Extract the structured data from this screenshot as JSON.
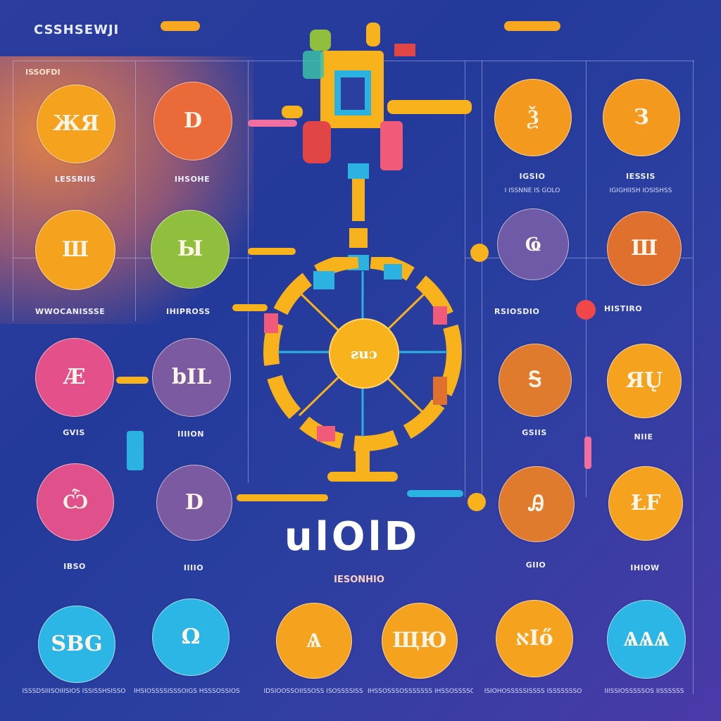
{
  "header": {
    "brand": "CSSHSEWJI",
    "accent_color": "#f7a820"
  },
  "corner_label": "ISSOFDI",
  "side_labels": {
    "left_mid": "WWOCANISSSE",
    "left_mid_2": "IHIPROSS",
    "right_mid": "RSIOSDIO",
    "right_mid_2": "HISTIRO"
  },
  "circles": [
    {
      "glyph": "ЖЯ",
      "label": "LESSRIIS",
      "color": "#f5a31f"
    },
    {
      "glyph": "D",
      "label": "IHSOHE",
      "color": "#ea6a3a"
    },
    {
      "glyph": "Ѯ",
      "label": "IGSIO",
      "sublabel": "I ISSNNE IS GOLO",
      "color": "#f39a1e"
    },
    {
      "glyph": "З",
      "label": "IESSIS",
      "sublabel": "IGIGHIISH IOSISHSS",
      "color": "#f3991d"
    },
    {
      "glyph": "Ш",
      "label": "",
      "color": "#f5a31f"
    },
    {
      "glyph": "Ы",
      "label": "",
      "color": "#8fbf3c"
    },
    {
      "glyph": "Ҩ",
      "label": "",
      "color": "#6e5aa6"
    },
    {
      "glyph": "Ш",
      "label": "",
      "color": "#e0702e"
    },
    {
      "glyph": "Ӕ",
      "label": "GVIS",
      "color": "#e4508a"
    },
    {
      "glyph": "bIL",
      "label": "IIIION",
      "color": "#7c5aa2"
    },
    {
      "glyph": "Ꭶ",
      "label": "GSIIS",
      "color": "#e07a2c"
    },
    {
      "glyph": "ЯŲ",
      "label": "NIIE",
      "color": "#f5a31f"
    },
    {
      "glyph": "Ѽ",
      "label": "IBSO",
      "color": "#e0508a"
    },
    {
      "glyph": "D",
      "label": "IIIIO",
      "color": "#7c5aa2"
    },
    {
      "glyph": "Ꭿ",
      "label": "GIIO",
      "color": "#e07a2c"
    },
    {
      "glyph": "ŁF",
      "label": "IHIOW",
      "color": "#f5a31f"
    },
    {
      "glyph": "SBG",
      "label": "",
      "color": "#2cb6e6"
    },
    {
      "glyph": "Ω",
      "label": "",
      "color": "#2cb6e6"
    },
    {
      "glyph": "Ѧ",
      "label": "",
      "color": "#f5a31f"
    },
    {
      "glyph": "ЩЮ",
      "label": "",
      "color": "#f5a31f"
    },
    {
      "glyph": "אІő",
      "label": "",
      "color": "#f5a31f"
    },
    {
      "glyph": "ѦѦѦ",
      "label": "",
      "color": "#2cb6e6"
    }
  ],
  "wheel": {
    "hub_text": "ƨuɔ",
    "hub_color": "#f7b21c"
  },
  "center": {
    "title": "ulOlD",
    "subtitle": "IESONHIO"
  },
  "bottom_captions": [
    "ISSSDSIIISOIIISIOS ISSISSHSISSO",
    "IHSIOSSSSISSSOIGS HSSSOSSIOS",
    "IDSIOOSSOIISSOSS ISOSSSSISS",
    "IHSSOSSSOSSSSSSS IHSSOSSSSO",
    "ISIOHOSSSSSISSSS ISSSSSSSO",
    "IIISSIOSSSSSOS IISSSSSS"
  ]
}
